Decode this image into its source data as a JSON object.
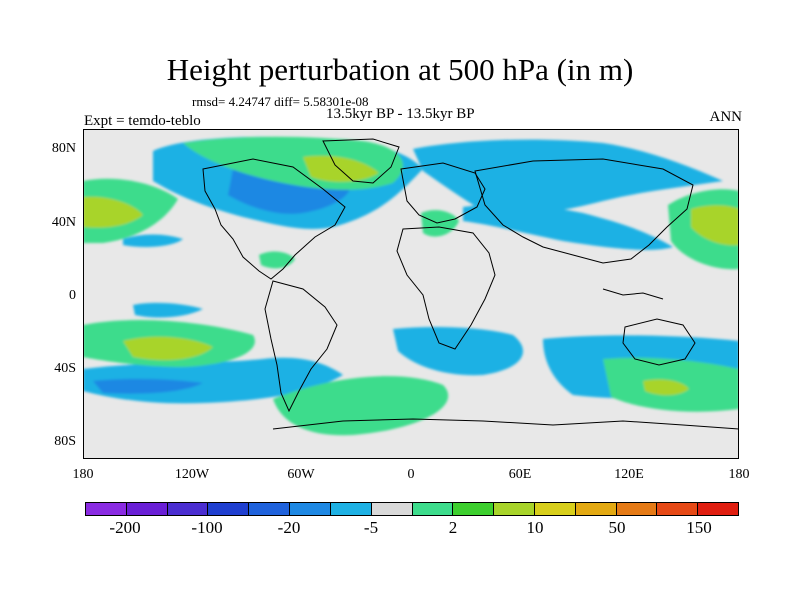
{
  "title": "Height perturbation at 500 hPa (in m)",
  "rmsd_text": "rmsd= 4.24747 diff= 5.58301e-08",
  "expt_text": "Expt = temdo-teblo",
  "periods_text": "13.5kyr BP - 13.5kyr BP",
  "season_text": "ANN",
  "lat_labels": [
    "80N",
    "40N",
    "0",
    "40S",
    "80S"
  ],
  "lon_labels": [
    "180",
    "120W",
    "60W",
    "0",
    "60E",
    "120E",
    "180"
  ],
  "colorbar": {
    "colors": [
      "#8a2be2",
      "#6a1fd6",
      "#4b2ed1",
      "#1f3fd0",
      "#1f62dc",
      "#1e88e3",
      "#1eb1e4",
      "#d9d9d9",
      "#3ddc8c",
      "#3dcf2e",
      "#a8d42a",
      "#d8cf1c",
      "#e3a912",
      "#e57a16",
      "#e64916",
      "#e01e10"
    ],
    "labels": [
      "-200",
      "-100",
      "-20",
      "-5",
      "2",
      "10",
      "50",
      "150"
    ]
  },
  "map_colors": {
    "ocean": "#e8e8e8",
    "coast": "#000000"
  }
}
